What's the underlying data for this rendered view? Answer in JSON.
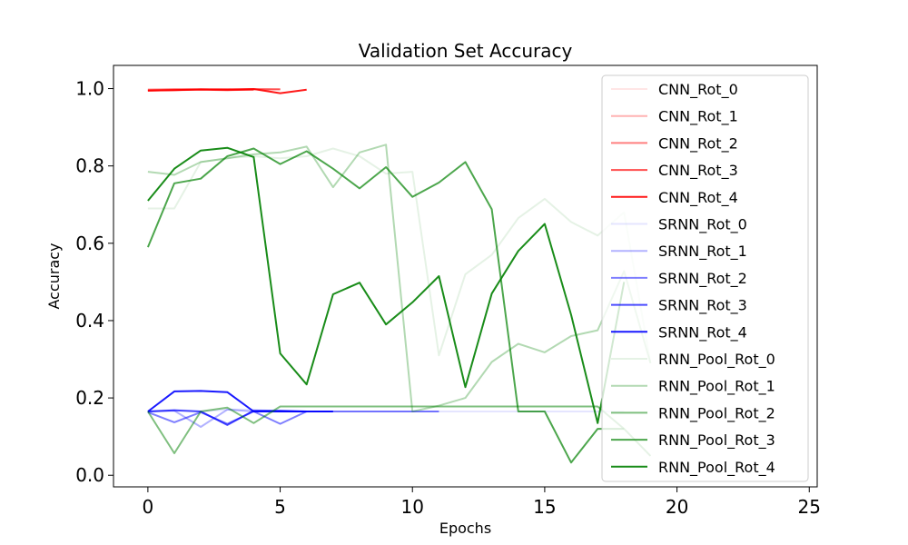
{
  "chart_data": {
    "type": "line",
    "title": "Validation Set Accuracy",
    "xlabel": "Epochs",
    "ylabel": "Accuracy",
    "xlim": [
      -1.3,
      25.3
    ],
    "ylim": [
      -0.03,
      1.06
    ],
    "xticks": [
      0,
      5,
      10,
      15,
      20,
      25
    ],
    "yticks": [
      0.0,
      0.2,
      0.4,
      0.6,
      0.8,
      1.0
    ],
    "ytick_labels": [
      "0.0",
      "0.2",
      "0.4",
      "0.6",
      "0.8",
      "1.0"
    ],
    "grid": false,
    "legend_position": "right",
    "series": [
      {
        "name": "CNN_Rot_0",
        "color": "#ff0000",
        "alpha": 0.1,
        "x": [
          0,
          1,
          2,
          3,
          4,
          5
        ],
        "y": [
          0.997,
          0.999,
          0.999,
          0.999,
          0.999,
          0.999
        ]
      },
      {
        "name": "CNN_Rot_1",
        "color": "#ff0000",
        "alpha": 0.3,
        "x": [
          0,
          1,
          2,
          3,
          4,
          5
        ],
        "y": [
          0.998,
          0.999,
          0.998,
          0.999,
          0.999,
          0.998
        ]
      },
      {
        "name": "CNN_Rot_2",
        "color": "#ff0000",
        "alpha": 0.5,
        "x": [
          0,
          1,
          2,
          3,
          4,
          5
        ],
        "y": [
          0.996,
          0.997,
          0.998,
          0.997,
          0.998,
          0.998
        ]
      },
      {
        "name": "CNN_Rot_3",
        "color": "#ff0000",
        "alpha": 0.7,
        "x": [
          0,
          1,
          2,
          3,
          4
        ],
        "y": [
          0.995,
          0.996,
          0.997,
          0.996,
          0.997
        ]
      },
      {
        "name": "CNN_Rot_4",
        "color": "#ff0000",
        "alpha": 0.9,
        "x": [
          0,
          1,
          2,
          3,
          4,
          5,
          6
        ],
        "y": [
          0.995,
          0.996,
          0.998,
          0.997,
          0.999,
          0.988,
          0.997
        ]
      },
      {
        "name": "SRNN_Rot_0",
        "color": "#0000ff",
        "alpha": 0.1,
        "x": [
          0,
          1,
          2,
          3,
          4,
          5,
          6,
          7,
          8,
          9,
          10,
          11,
          12,
          13,
          14,
          15,
          16,
          17,
          18
        ],
        "y": [
          0.165,
          0.17,
          0.165,
          0.17,
          0.17,
          0.165,
          0.165,
          0.165,
          0.165,
          0.165,
          0.165,
          0.165,
          0.165,
          0.165,
          0.165,
          0.165,
          0.165,
          0.165,
          0.165
        ]
      },
      {
        "name": "SRNN_Rot_1",
        "color": "#0000ff",
        "alpha": 0.3,
        "x": [
          0,
          1,
          2,
          3,
          4,
          5,
          6,
          7
        ],
        "y": [
          0.165,
          0.167,
          0.125,
          0.17,
          0.165,
          0.165,
          0.165,
          0.165
        ]
      },
      {
        "name": "SRNN_Rot_2",
        "color": "#0000ff",
        "alpha": 0.5,
        "x": [
          0,
          1,
          2,
          3,
          4,
          5,
          6,
          7,
          8,
          9,
          10,
          11
        ],
        "y": [
          0.163,
          0.137,
          0.163,
          0.133,
          0.165,
          0.133,
          0.165,
          0.165,
          0.165,
          0.165,
          0.165,
          0.165
        ]
      },
      {
        "name": "SRNN_Rot_3",
        "color": "#0000ff",
        "alpha": 0.7,
        "x": [
          0,
          1,
          2,
          3,
          4,
          5,
          6
        ],
        "y": [
          0.165,
          0.168,
          0.165,
          0.13,
          0.167,
          0.167,
          0.165
        ]
      },
      {
        "name": "SRNN_Rot_4",
        "color": "#0000ff",
        "alpha": 0.9,
        "x": [
          0,
          1,
          2,
          3,
          4,
          5,
          6,
          7
        ],
        "y": [
          0.165,
          0.217,
          0.218,
          0.215,
          0.165,
          0.165,
          0.165,
          0.165
        ]
      },
      {
        "name": "RNN_Pool_Rot_0",
        "color": "#008000",
        "alpha": 0.1,
        "x": [
          0,
          1,
          2,
          3,
          4,
          5,
          6,
          7,
          8,
          9,
          10,
          11,
          12,
          13,
          14,
          15,
          16,
          17,
          18,
          19
        ],
        "y": [
          0.69,
          0.69,
          0.81,
          0.82,
          0.825,
          0.82,
          0.825,
          0.845,
          0.825,
          0.78,
          0.785,
          0.31,
          0.52,
          0.57,
          0.665,
          0.715,
          0.655,
          0.62,
          0.68,
          0.29
        ]
      },
      {
        "name": "RNN_Pool_Rot_1",
        "color": "#008000",
        "alpha": 0.3,
        "x": [
          0,
          1,
          2,
          3,
          4,
          5,
          6,
          7,
          8,
          9,
          10,
          11,
          12,
          13,
          14,
          15,
          16,
          17,
          18,
          19
        ],
        "y": [
          0.785,
          0.777,
          0.81,
          0.82,
          0.83,
          0.835,
          0.85,
          0.745,
          0.835,
          0.855,
          0.165,
          0.18,
          0.2,
          0.293,
          0.34,
          0.318,
          0.36,
          0.375,
          0.528,
          0.29
        ]
      },
      {
        "name": "RNN_Pool_Rot_2",
        "color": "#008000",
        "alpha": 0.5,
        "x": [
          0,
          1,
          2,
          3,
          4,
          5,
          6,
          7,
          8,
          9,
          10,
          11,
          12,
          13,
          14,
          15,
          16,
          17,
          18,
          19
        ],
        "y": [
          0.165,
          0.057,
          0.165,
          0.175,
          0.135,
          0.178,
          0.178,
          0.178,
          0.178,
          0.178,
          0.178,
          0.178,
          0.178,
          0.178,
          0.178,
          0.178,
          0.178,
          0.178,
          0.12,
          0.05
        ]
      },
      {
        "name": "RNN_Pool_Rot_3",
        "color": "#008000",
        "alpha": 0.7,
        "x": [
          0,
          1,
          2,
          3,
          4,
          5,
          6,
          7,
          8,
          9,
          10,
          11,
          12,
          13,
          14,
          15,
          16,
          17,
          18
        ],
        "y": [
          0.59,
          0.755,
          0.767,
          0.825,
          0.845,
          0.805,
          0.838,
          0.793,
          0.742,
          0.797,
          0.72,
          0.757,
          0.81,
          0.688,
          0.165,
          0.165,
          0.033,
          0.12,
          0.12
        ]
      },
      {
        "name": "RNN_Pool_Rot_4",
        "color": "#008000",
        "alpha": 0.9,
        "x": [
          0,
          1,
          2,
          3,
          4,
          5,
          6,
          7,
          8,
          9,
          10,
          11,
          12,
          13,
          14,
          15,
          16,
          17,
          18
        ],
        "y": [
          0.71,
          0.793,
          0.84,
          0.847,
          0.823,
          0.315,
          0.235,
          0.468,
          0.498,
          0.39,
          0.447,
          0.515,
          0.228,
          0.47,
          0.58,
          0.65,
          0.415,
          0.135,
          0.5
        ]
      }
    ]
  }
}
